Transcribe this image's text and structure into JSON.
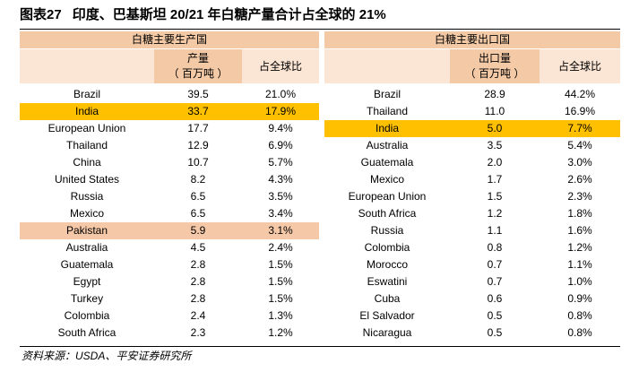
{
  "title": {
    "number": "图表27",
    "text": "印度、巴基斯坦 20/21 年白糖产量合计占全球的 21%"
  },
  "production": {
    "group_header": "白糖主要生产国",
    "col_amount_line1": "产量",
    "col_amount_line2": "（ 百万吨 ）",
    "col_share": "占全球比",
    "rows": [
      {
        "country": "Brazil",
        "amount": "39.5",
        "share": "21.0%"
      },
      {
        "country": "India",
        "amount": "33.7",
        "share": "17.9%"
      },
      {
        "country": "European Union",
        "amount": "17.7",
        "share": "9.4%"
      },
      {
        "country": "Thailand",
        "amount": "12.9",
        "share": "6.9%"
      },
      {
        "country": "China",
        "amount": "10.7",
        "share": "5.7%"
      },
      {
        "country": "United States",
        "amount": "8.2",
        "share": "4.3%"
      },
      {
        "country": "Russia",
        "amount": "6.5",
        "share": "3.5%"
      },
      {
        "country": "Mexico",
        "amount": "6.5",
        "share": "3.4%"
      },
      {
        "country": "Pakistan",
        "amount": "5.9",
        "share": "3.1%"
      },
      {
        "country": "Australia",
        "amount": "4.5",
        "share": "2.4%"
      },
      {
        "country": "Guatemala",
        "amount": "2.8",
        "share": "1.5%"
      },
      {
        "country": "Egypt",
        "amount": "2.8",
        "share": "1.5%"
      },
      {
        "country": "Turkey",
        "amount": "2.8",
        "share": "1.5%"
      },
      {
        "country": "Colombia",
        "amount": "2.4",
        "share": "1.3%"
      },
      {
        "country": "South Africa",
        "amount": "2.3",
        "share": "1.2%"
      }
    ]
  },
  "export": {
    "group_header": "白糖主要出口国",
    "col_amount_line1": "出口量",
    "col_amount_line2": "（ 百万吨 ）",
    "col_share": "占全球比",
    "rows": [
      {
        "country": "Brazil",
        "amount": "28.9",
        "share": "44.2%"
      },
      {
        "country": "Thailand",
        "amount": "11.0",
        "share": "16.9%"
      },
      {
        "country": "India",
        "amount": "5.0",
        "share": "7.7%"
      },
      {
        "country": "Australia",
        "amount": "3.5",
        "share": "5.4%"
      },
      {
        "country": "Guatemala",
        "amount": "2.0",
        "share": "3.0%"
      },
      {
        "country": "Mexico",
        "amount": "1.7",
        "share": "2.6%"
      },
      {
        "country": "European Union",
        "amount": "1.5",
        "share": "2.3%"
      },
      {
        "country": "South Africa",
        "amount": "1.2",
        "share": "1.8%"
      },
      {
        "country": "Russia",
        "amount": "1.1",
        "share": "1.6%"
      },
      {
        "country": "Colombia",
        "amount": "0.8",
        "share": "1.2%"
      },
      {
        "country": "Morocco",
        "amount": "0.7",
        "share": "1.1%"
      },
      {
        "country": "Eswatini",
        "amount": "0.7",
        "share": "1.0%"
      },
      {
        "country": "Cuba",
        "amount": "0.6",
        "share": "0.9%"
      },
      {
        "country": "El Salvador",
        "amount": "0.5",
        "share": "0.8%"
      },
      {
        "country": "Nicaragua",
        "amount": "0.5",
        "share": "0.8%"
      }
    ]
  },
  "source": "资料来源：USDA、平安证券研究所",
  "colors": {
    "group_header_bg": "#f3c9a6",
    "subheader_bg": "#fbe5d5",
    "highlight_india": "#ffc000",
    "highlight_pakistan": "#f5c8a8"
  }
}
